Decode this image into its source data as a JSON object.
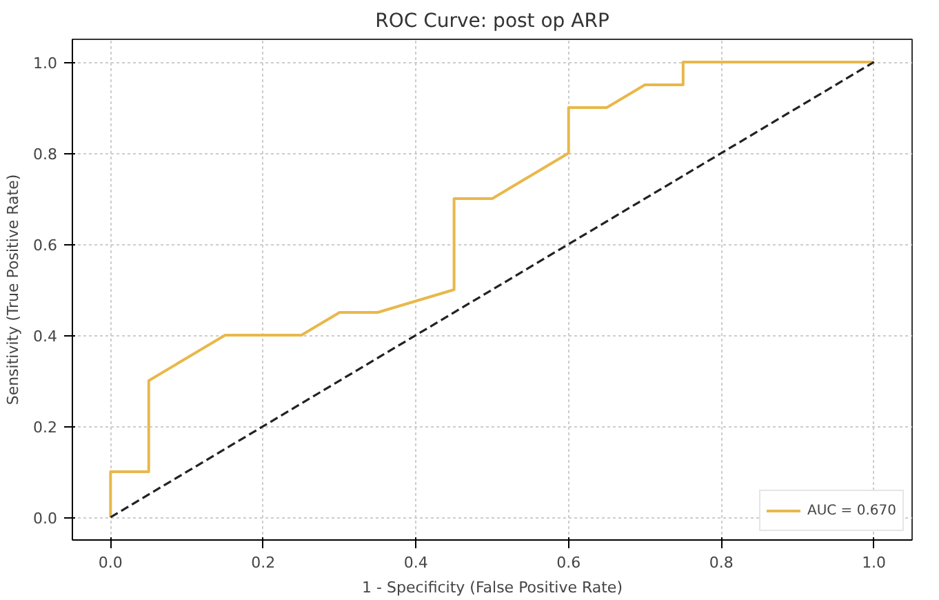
{
  "chart_data": {
    "type": "line",
    "title": "ROC Curve: post op ARP",
    "xlabel": "1 - Specificity (False Positive Rate)",
    "ylabel": "Sensitivity (True Positive Rate)",
    "xlim": [
      -0.05,
      1.05
    ],
    "ylim": [
      -0.05,
      1.05
    ],
    "xticks": [
      {
        "value": 0,
        "label": "0.0"
      },
      {
        "value": 0.2,
        "label": "0.2"
      },
      {
        "value": 0.4,
        "label": "0.4"
      },
      {
        "value": 0.6,
        "label": "0.6"
      },
      {
        "value": 0.8,
        "label": "0.8"
      },
      {
        "value": 1,
        "label": "1.0"
      }
    ],
    "yticks": [
      {
        "value": 0,
        "label": "0.0"
      },
      {
        "value": 0.2,
        "label": "0.2"
      },
      {
        "value": 0.4,
        "label": "0.4"
      },
      {
        "value": 0.6,
        "label": "0.6"
      },
      {
        "value": 0.8,
        "label": "0.8"
      },
      {
        "value": 1,
        "label": "1.0"
      }
    ],
    "grid": true,
    "legend": "bottom right",
    "series": [
      {
        "name": "AUC = 0.670",
        "color": "#e8b84a",
        "line_style": "solid",
        "x": [
          0,
          0,
          0.05,
          0.05,
          0.15,
          0.25,
          0.3,
          0.35,
          0.45,
          0.45,
          0.5,
          0.6,
          0.6,
          0.65,
          0.7,
          0.75,
          0.75,
          1
        ],
        "values": [
          0,
          0.1,
          0.1,
          0.3,
          0.4,
          0.4,
          0.45,
          0.45,
          0.5,
          0.7,
          0.7,
          0.8,
          0.9,
          0.9,
          0.95,
          0.95,
          1,
          1
        ]
      },
      {
        "color": "#222222",
        "line_style": "dashed",
        "x": [
          0,
          1
        ],
        "values": [
          0,
          1
        ]
      }
    ]
  }
}
